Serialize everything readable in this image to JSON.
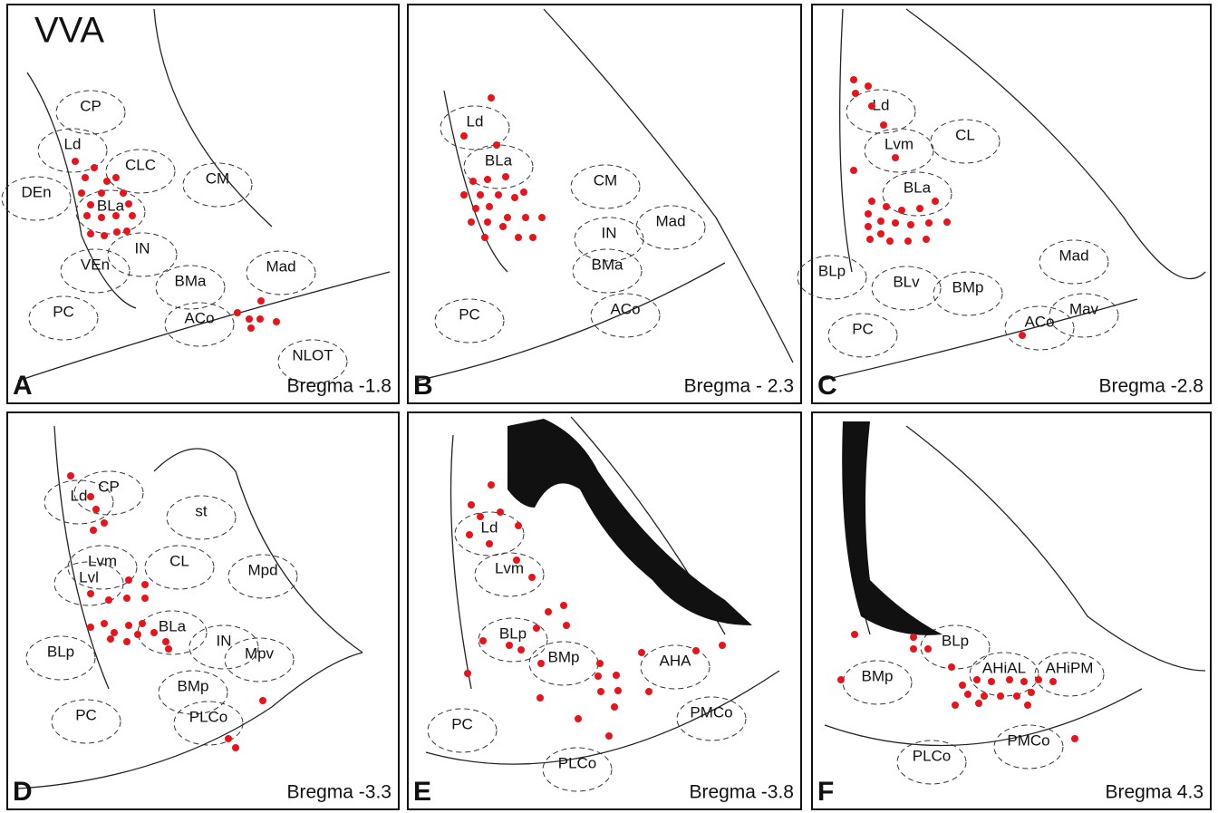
{
  "title": "VVA",
  "panels": [
    {
      "letter": "A",
      "bregma": "Bregma -1.8",
      "regions": [
        "CP",
        "Ld",
        "CLC",
        "CM",
        "DEn",
        "BLa",
        "IN",
        "VEn",
        "Mad",
        "BMa",
        "PC",
        "ACo",
        "NLOT"
      ]
    },
    {
      "letter": "B",
      "bregma": "Bregma - 2.3",
      "regions": [
        "Ld",
        "BLa",
        "CM",
        "Mad",
        "IN",
        "BMa",
        "PC",
        "ACo"
      ]
    },
    {
      "letter": "C",
      "bregma": "Bregma -2.8",
      "regions": [
        "Ld",
        "CL",
        "Lvm",
        "BLa",
        "Mad",
        "BLp",
        "BLv",
        "BMp",
        "ACo",
        "Mav",
        "PC"
      ]
    },
    {
      "letter": "D",
      "bregma": "Bregma -3.3",
      "regions": [
        "CP",
        "Ld",
        "st",
        "Lvm",
        "CL",
        "Lvl",
        "Mpd",
        "BLa",
        "BLp",
        "IN",
        "BMp",
        "Mpv",
        "PC",
        "PLCo"
      ]
    },
    {
      "letter": "E",
      "bregma": "Bregma -3.8",
      "regions": [
        "Ld",
        "Lvm",
        "BLp",
        "BMp",
        "AHA",
        "PC",
        "PMCo",
        "PLCo"
      ]
    },
    {
      "letter": "F",
      "bregma": "Bregma 4.3",
      "regions": [
        "BLp",
        "AHiAL",
        "AHiPM",
        "BMp",
        "PMCo",
        "PLCo"
      ]
    }
  ]
}
